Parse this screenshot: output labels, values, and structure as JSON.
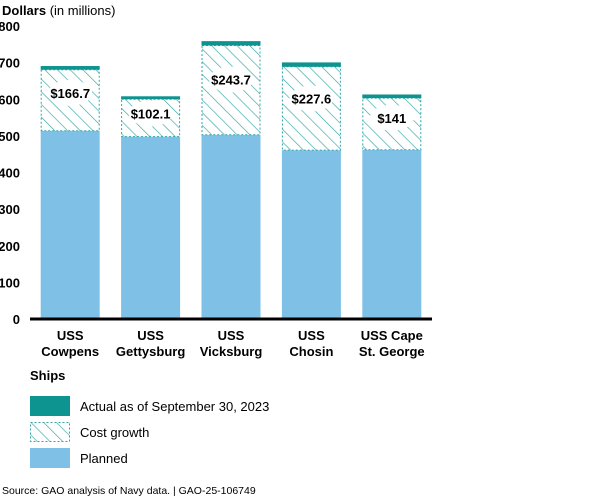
{
  "chart_data": {
    "type": "bar",
    "stacked": true,
    "ylabel_bold": "Dollars",
    "ylabel_unit": "(in millions)",
    "ylim": [
      0,
      800
    ],
    "yticks": [
      0,
      100,
      200,
      300,
      400,
      500,
      600,
      700,
      800
    ],
    "xlabel": "Ships",
    "categories": [
      [
        "USS",
        "Cowpens"
      ],
      [
        "USS",
        "Gettysburg"
      ],
      [
        "USS",
        "Vicksburg"
      ],
      [
        "USS",
        "Chosin"
      ],
      [
        "USS Cape",
        "St. George"
      ]
    ],
    "series": [
      {
        "name": "Planned",
        "values": [
          514,
          498,
          503,
          461,
          462
        ]
      },
      {
        "name": "Cost growth",
        "values": [
          166.7,
          102.1,
          243.7,
          227.6,
          141
        ]
      },
      {
        "name": "Actual as of September 30, 2023",
        "values": [
          10,
          8,
          12,
          12,
          10
        ]
      }
    ],
    "growth_labels": [
      "$166.7",
      "$102.1",
      "$243.7",
      "$227.6",
      "$141"
    ],
    "colors": {
      "Planned": "#7fc1e6",
      "Cost growth": "#ffffff",
      "Cost growth hatch": "#32a6a6",
      "Actual as of September 30, 2023": "#0d9490"
    },
    "grid": false
  },
  "legend": {
    "title": "Ships",
    "items": [
      {
        "label": "Actual as of September 30, 2023",
        "key": "actual"
      },
      {
        "label": "Cost growth",
        "key": "growth"
      },
      {
        "label": "Planned",
        "key": "planned"
      }
    ]
  },
  "source": "Source: GAO analysis of Navy data.  |  GAO-25-106749"
}
